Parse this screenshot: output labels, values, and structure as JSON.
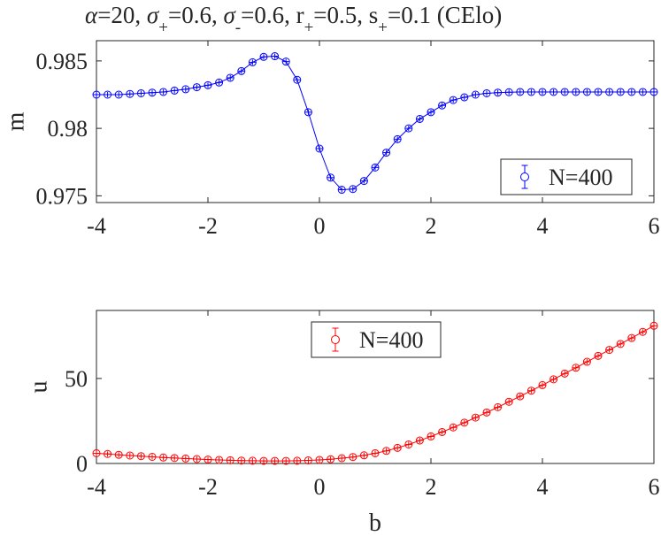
{
  "title": {
    "alpha": "α",
    "alpha_val": "=20, ",
    "sigma1": "σ",
    "sigma1_sub": "+",
    "sigma1_val": "=0.6, ",
    "sigma2": "σ",
    "sigma2_sub": "-",
    "sigma2_val": "=0.6, r",
    "r_sub": "+",
    "r_val": "=0.5, s",
    "s_sub": "+",
    "s_val": "=0.1 (CElo)"
  },
  "chart_data": [
    {
      "type": "line",
      "ylabel": "m",
      "xlim": [
        -4,
        6
      ],
      "ylim": [
        0.9745,
        0.9865
      ],
      "x_ticks": [
        -4,
        -2,
        0,
        2,
        4,
        6
      ],
      "y_ticks": [
        0.975,
        0.98,
        0.985
      ],
      "y_tick_labels": [
        "0.975",
        "0.98",
        "0.985"
      ],
      "legend_position": "bottom-right",
      "color": "#0000ff",
      "series": [
        {
          "name": "N=400",
          "x": [
            -4.0,
            -3.8,
            -3.6,
            -3.4,
            -3.2,
            -3.0,
            -2.8,
            -2.6,
            -2.4,
            -2.2,
            -2.0,
            -1.8,
            -1.6,
            -1.4,
            -1.2,
            -1.0,
            -0.8,
            -0.6,
            -0.4,
            -0.2,
            0.0,
            0.2,
            0.4,
            0.6,
            0.8,
            1.0,
            1.2,
            1.4,
            1.6,
            1.8,
            2.0,
            2.2,
            2.4,
            2.6,
            2.8,
            3.0,
            3.2,
            3.4,
            3.6,
            3.8,
            4.0,
            4.2,
            4.4,
            4.6,
            4.8,
            5.0,
            5.2,
            5.4,
            5.6,
            5.8,
            6.0
          ],
          "y": [
            0.9825,
            0.9825,
            0.9825,
            0.98255,
            0.9826,
            0.98265,
            0.9827,
            0.9828,
            0.9829,
            0.98305,
            0.9832,
            0.9834,
            0.98375,
            0.98425,
            0.9849,
            0.9853,
            0.98535,
            0.98495,
            0.9836,
            0.9812,
            0.9785,
            0.97635,
            0.97545,
            0.9755,
            0.9761,
            0.9771,
            0.9782,
            0.9792,
            0.98,
            0.9807,
            0.9812,
            0.9817,
            0.9821,
            0.9823,
            0.9825,
            0.9826,
            0.98265,
            0.98268,
            0.9827,
            0.9827,
            0.9827,
            0.9827,
            0.9827,
            0.9827,
            0.9827,
            0.9827,
            0.9827,
            0.9827,
            0.9827,
            0.9827,
            0.9827
          ]
        }
      ]
    },
    {
      "type": "line",
      "xlabel": "b",
      "ylabel": "u",
      "xlim": [
        -4,
        6
      ],
      "ylim": [
        0,
        90
      ],
      "x_ticks": [
        -4,
        -2,
        0,
        2,
        4,
        6
      ],
      "y_ticks": [
        0,
        50
      ],
      "y_tick_labels": [
        "0",
        "50"
      ],
      "legend_position": "top-center",
      "color": "#ff0000",
      "series": [
        {
          "name": "N=400",
          "x": [
            -4.0,
            -3.8,
            -3.6,
            -3.4,
            -3.2,
            -3.0,
            -2.8,
            -2.6,
            -2.4,
            -2.2,
            -2.0,
            -1.8,
            -1.6,
            -1.4,
            -1.2,
            -1.0,
            -0.8,
            -0.6,
            -0.4,
            -0.2,
            0.0,
            0.2,
            0.4,
            0.6,
            0.8,
            1.0,
            1.2,
            1.4,
            1.6,
            1.8,
            2.0,
            2.2,
            2.4,
            2.6,
            2.8,
            3.0,
            3.2,
            3.4,
            3.6,
            3.8,
            4.0,
            4.2,
            4.4,
            4.6,
            4.8,
            5.0,
            5.2,
            5.4,
            5.6,
            5.8,
            6.0
          ],
          "y": [
            6.0,
            5.6,
            5.1,
            4.7,
            4.3,
            3.9,
            3.5,
            3.2,
            2.9,
            2.6,
            2.3,
            2.1,
            1.9,
            1.7,
            1.6,
            1.5,
            1.5,
            1.5,
            1.6,
            1.8,
            2.1,
            2.5,
            3.1,
            3.8,
            4.8,
            6.0,
            7.4,
            9.2,
            11.2,
            13.5,
            15.9,
            18.5,
            21.2,
            24.0,
            27.0,
            30.0,
            33.1,
            36.3,
            39.5,
            42.8,
            46.1,
            49.5,
            52.9,
            56.3,
            59.8,
            63.3,
            66.8,
            70.3,
            73.8,
            77.4,
            81.0
          ]
        }
      ]
    }
  ]
}
